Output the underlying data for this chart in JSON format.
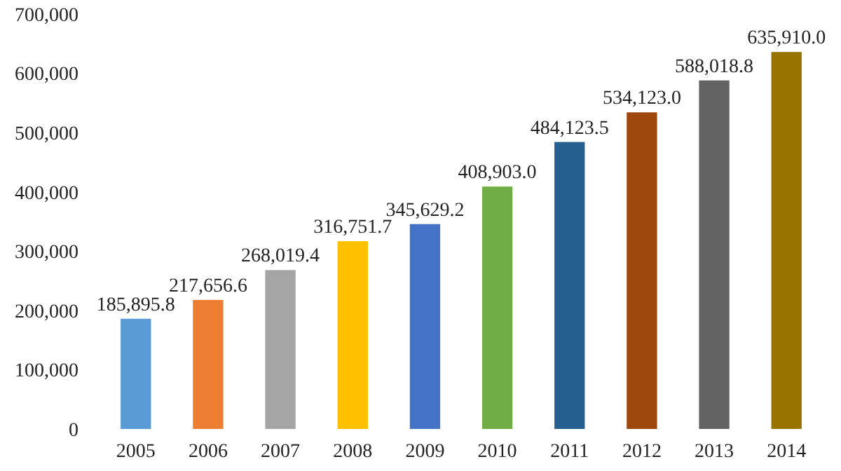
{
  "chart_data": {
    "type": "bar",
    "categories": [
      "2005",
      "2006",
      "2007",
      "2008",
      "2009",
      "2010",
      "2011",
      "2012",
      "2013",
      "2014"
    ],
    "values": [
      185895.8,
      217656.6,
      268019.4,
      316751.7,
      345629.2,
      408903.0,
      484123.5,
      534123.0,
      588018.8,
      635910.0
    ],
    "value_labels": [
      "185,895.8",
      "217,656.6",
      "268,019.4",
      "316,751.7",
      "345,629.2",
      "408,903.0",
      "484,123.5",
      "534,123.0",
      "588,018.8",
      "635,910.0"
    ],
    "colors": [
      "#5b9bd5",
      "#ed7d31",
      "#a5a5a5",
      "#ffc000",
      "#4472c4",
      "#70ad47",
      "#255e91",
      "#9e480e",
      "#636363",
      "#997300"
    ],
    "ylim": [
      0,
      700000
    ],
    "yticks": [
      {
        "value": 0,
        "label": "0"
      },
      {
        "value": 100000,
        "label": "100,000"
      },
      {
        "value": 200000,
        "label": "200,000"
      },
      {
        "value": 300000,
        "label": "300,000"
      },
      {
        "value": 400000,
        "label": "400,000"
      },
      {
        "value": 500000,
        "label": "500,000"
      },
      {
        "value": 600000,
        "label": "600,000"
      },
      {
        "value": 700000,
        "label": "700,000"
      }
    ],
    "grid": false
  }
}
